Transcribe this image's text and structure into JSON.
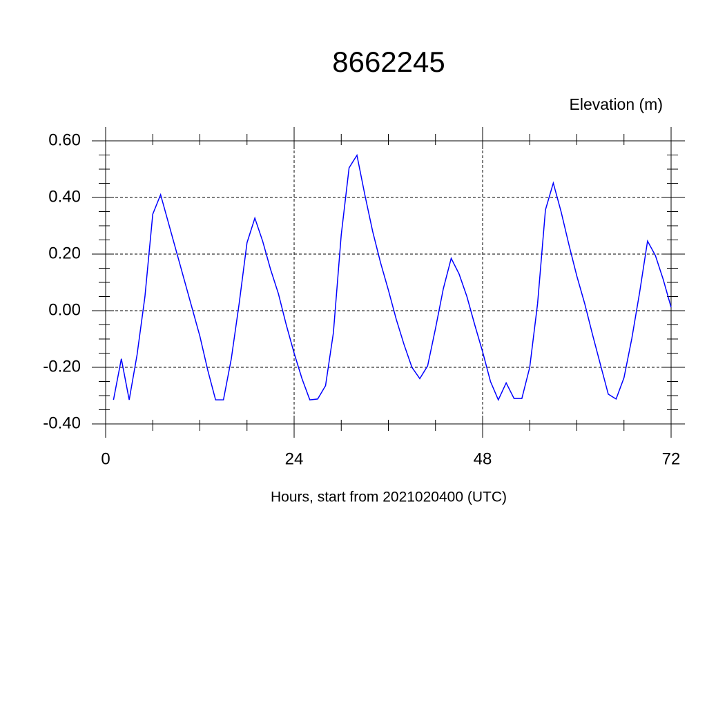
{
  "chart_data": {
    "type": "line",
    "title": "8662245",
    "ylabel": "Elevation (m)",
    "xlabel": "Hours, start from 2021020400 (UTC)",
    "x": [
      1,
      2,
      3,
      4,
      5,
      6,
      7,
      8,
      9,
      10,
      11,
      12,
      13,
      14,
      15,
      16,
      17,
      18,
      19,
      20,
      21,
      22,
      23,
      24,
      25,
      26,
      27,
      28,
      29,
      30,
      31,
      32,
      33,
      34,
      35,
      36,
      37,
      38,
      39,
      40,
      41,
      42,
      43,
      44,
      45,
      46,
      47,
      48,
      49,
      50,
      51,
      52,
      53,
      54,
      55,
      56,
      57,
      58,
      59,
      60,
      61,
      62,
      63,
      64,
      65,
      66,
      67,
      68,
      69,
      70,
      71,
      72
    ],
    "series": [
      {
        "name": "Elevation",
        "color": "#0000ff",
        "values": [
          -0.315,
          -0.17,
          -0.315,
          -0.156,
          0.049,
          0.341,
          0.41,
          0.31,
          0.21,
          0.11,
          0.01,
          -0.09,
          -0.21,
          -0.315,
          -0.315,
          -0.17,
          0.025,
          0.24,
          0.327,
          0.245,
          0.146,
          0.06,
          -0.05,
          -0.15,
          -0.24,
          -0.315,
          -0.312,
          -0.265,
          -0.078,
          0.268,
          0.505,
          0.549,
          0.41,
          0.28,
          0.17,
          0.073,
          -0.03,
          -0.12,
          -0.2,
          -0.24,
          -0.195,
          -0.063,
          0.078,
          0.185,
          0.13,
          0.05,
          -0.05,
          -0.145,
          -0.25,
          -0.315,
          -0.255,
          -0.31,
          -0.31,
          -0.2,
          0.025,
          0.356,
          0.451,
          0.349,
          0.232,
          0.122,
          0.025,
          -0.085,
          -0.19,
          -0.295,
          -0.312,
          -0.237,
          -0.098,
          0.066,
          0.246,
          0.195,
          0.11,
          0.012
        ]
      }
    ],
    "xlim": [
      0,
      72
    ],
    "xticks": [
      0,
      24,
      48,
      72
    ],
    "xminorticks": [
      6,
      12,
      18,
      30,
      36,
      42,
      54,
      60,
      66
    ],
    "ylim": [
      -0.4,
      0.6
    ],
    "yticks": [
      {
        "value": -0.4,
        "label": "-0.40"
      },
      {
        "value": -0.2,
        "label": "-0.20"
      },
      {
        "value": 0,
        "label": "0.00"
      },
      {
        "value": 0.2,
        "label": "0.20"
      },
      {
        "value": 0.4,
        "label": "0.40"
      },
      {
        "value": 0.6,
        "label": "0.60"
      }
    ],
    "yminorticks": [
      -0.35,
      -0.3,
      -0.25,
      -0.15,
      -0.1,
      -0.05,
      0.05,
      0.1,
      0.15,
      0.25,
      0.3,
      0.35,
      0.45,
      0.5,
      0.55
    ],
    "grid": true
  }
}
